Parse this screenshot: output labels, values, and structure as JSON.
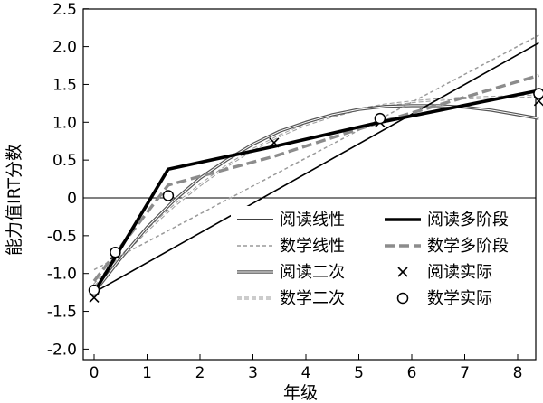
{
  "chart_data": {
    "type": "line",
    "xlabel": "年级",
    "ylabel": "能力值IRT分数",
    "xlim": [
      -0.2,
      8.7
    ],
    "ylim": [
      -2.0,
      2.5
    ],
    "x_ticks": [
      "0",
      "1",
      "2",
      "3",
      "4",
      "5",
      "6",
      "7",
      "8"
    ],
    "y_ticks": [
      "2.5",
      "2.0",
      "1.5",
      "1.0",
      "0.5",
      "0",
      "-0.5",
      "-1.0",
      "-1.5",
      "-2.0"
    ],
    "y_tick_values": [
      2.5,
      2.0,
      1.5,
      1.0,
      0.5,
      0.0,
      -0.5,
      -1.0,
      -1.5,
      -2.0
    ],
    "grid": false,
    "legend_position": "lower-right",
    "legend_columns": 2,
    "series": [
      {
        "name": "阅读线性",
        "style": "thin-solid",
        "color": "#000000",
        "x": [
          0,
          8.4
        ],
        "y": [
          -1.25,
          2.05
        ]
      },
      {
        "name": "阅读多阶段",
        "style": "thick-solid",
        "color": "#000000",
        "x": [
          0,
          1.4,
          3.4,
          5.4,
          8.4
        ],
        "y": [
          -1.25,
          0.38,
          0.68,
          1.0,
          1.42
        ]
      },
      {
        "name": "数学线性",
        "style": "thin-dashed",
        "color": "#9a9a9a",
        "x": [
          0,
          8.4
        ],
        "y": [
          -0.95,
          2.15
        ]
      },
      {
        "name": "数学多阶段",
        "style": "thick-dashed",
        "color": "#8c8c8c",
        "x": [
          0,
          1.4,
          3.4,
          5.4,
          8.4
        ],
        "y": [
          -1.1,
          0.17,
          0.55,
          1.0,
          1.62
        ]
      },
      {
        "name": "阅读二次",
        "style": "double-gray-solid",
        "color": "#555555",
        "x": [
          0,
          0.5,
          1,
          1.5,
          2,
          2.5,
          3,
          3.5,
          4,
          4.5,
          5,
          5.5,
          6,
          6.5,
          7,
          7.5,
          8,
          8.4
        ],
        "y": [
          -1.25,
          -0.8,
          -0.39,
          -0.04,
          0.26,
          0.5,
          0.71,
          0.88,
          1.0,
          1.1,
          1.17,
          1.21,
          1.22,
          1.22,
          1.2,
          1.16,
          1.1,
          1.05
        ]
      },
      {
        "name": "数学二次",
        "style": "double-gray-dashed",
        "color": "#9a9a9a",
        "x": [
          0,
          0.5,
          1,
          1.5,
          2,
          2.5,
          3,
          3.5,
          4,
          4.5,
          5,
          5.5,
          6,
          6.5,
          7,
          7.5,
          8,
          8.4
        ],
        "y": [
          -1.15,
          -0.78,
          -0.43,
          -0.11,
          0.17,
          0.42,
          0.64,
          0.82,
          0.97,
          1.08,
          1.17,
          1.23,
          1.27,
          1.3,
          1.32,
          1.33,
          1.34,
          1.35
        ]
      }
    ],
    "markers": [
      {
        "name": "阅读实际",
        "symbol": "x",
        "x": [
          0,
          0.4,
          3.4,
          5.4,
          8.4
        ],
        "y": [
          -1.32,
          -0.75,
          0.73,
          1.0,
          1.28
        ]
      },
      {
        "name": "数学实际",
        "symbol": "o",
        "x": [
          0,
          0.4,
          1.4,
          5.4,
          8.4
        ],
        "y": [
          -1.22,
          -0.72,
          0.03,
          1.05,
          1.38
        ]
      }
    ],
    "legend": [
      {
        "name": "阅读线性",
        "series": "阅读线性"
      },
      {
        "name": "阅读多阶段",
        "series": "阅读多阶段"
      },
      {
        "name": "数学线性",
        "series": "数学线性"
      },
      {
        "name": "数学多阶段",
        "series": "数学多阶段"
      },
      {
        "name": "阅读二次",
        "series": "阅读二次"
      },
      {
        "name": "阅读实际",
        "marker": "阅读实际"
      },
      {
        "name": "数学二次",
        "series": "数学二次"
      },
      {
        "name": "数学实际",
        "marker": "数学实际"
      }
    ]
  }
}
